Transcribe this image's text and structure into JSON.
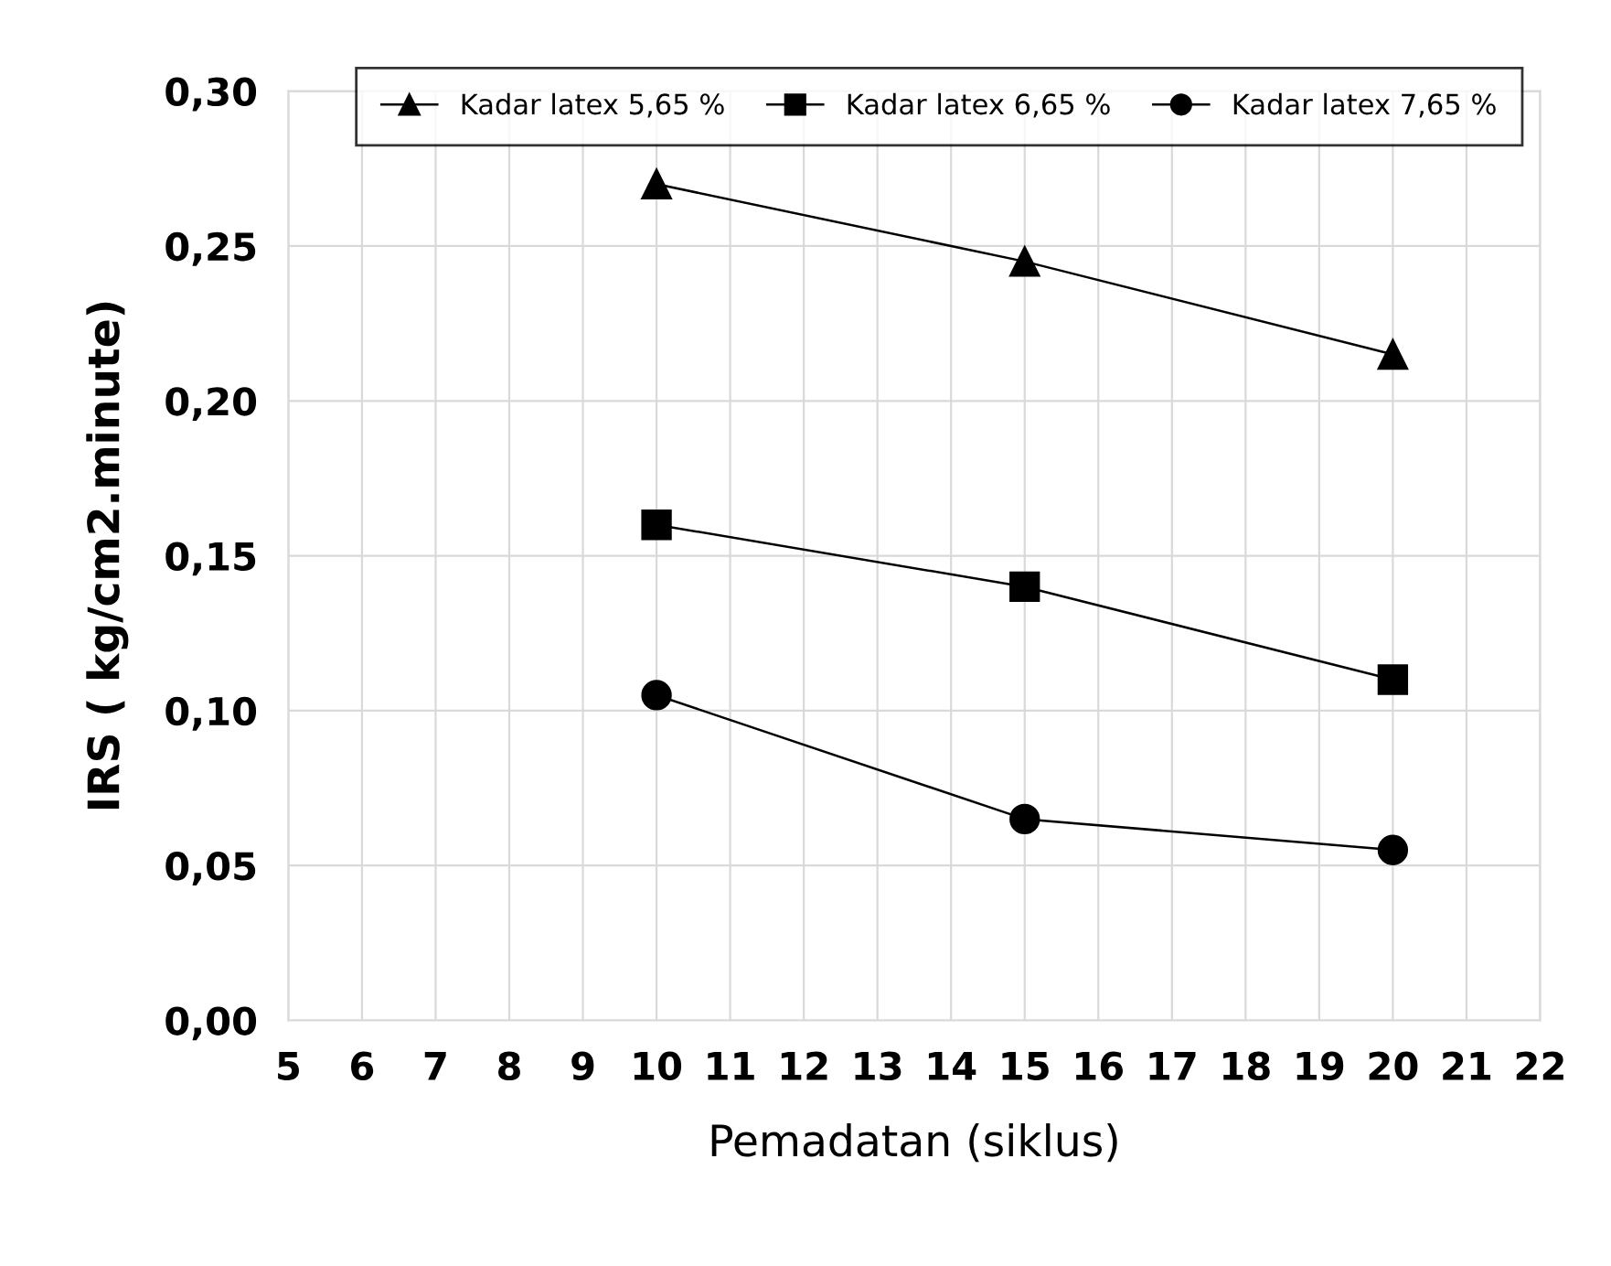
{
  "chart_data": {
    "type": "line",
    "xlabel": "Pemadatan (siklus)",
    "ylabel": "IRS ( kg/cm2.minute)",
    "xlim": [
      5,
      22
    ],
    "xticks": [
      5,
      6,
      7,
      8,
      9,
      10,
      11,
      12,
      13,
      14,
      15,
      16,
      17,
      18,
      19,
      20,
      21,
      22
    ],
    "ylim": [
      0,
      0.3
    ],
    "yticks": [
      {
        "value": 0,
        "label": "0,00"
      },
      {
        "value": 0.05,
        "label": "0,05"
      },
      {
        "value": 0.1,
        "label": "0,10"
      },
      {
        "value": 0.15,
        "label": "0,15"
      },
      {
        "value": 0.2,
        "label": "0,20"
      },
      {
        "value": 0.25,
        "label": "0,25"
      },
      {
        "value": 0.3,
        "label": "0,30"
      }
    ],
    "grid": true,
    "legend": "top",
    "line_style": "solid",
    "series": [
      {
        "name": "Kadar latex 5,65 %",
        "color": "#000000",
        "marker": "triangle",
        "x": [
          10,
          15,
          20
        ],
        "values": [
          0.27,
          0.245,
          0.215
        ]
      },
      {
        "name": "Kadar latex 6,65 %",
        "color": "#000000",
        "marker": "square",
        "x": [
          10,
          15,
          20
        ],
        "values": [
          0.16,
          0.14,
          0.11
        ]
      },
      {
        "name": "Kadar latex 7,65 %",
        "color": "#000000",
        "marker": "circle",
        "x": [
          10,
          15,
          20
        ],
        "values": [
          0.105,
          0.065,
          0.055
        ]
      }
    ]
  }
}
